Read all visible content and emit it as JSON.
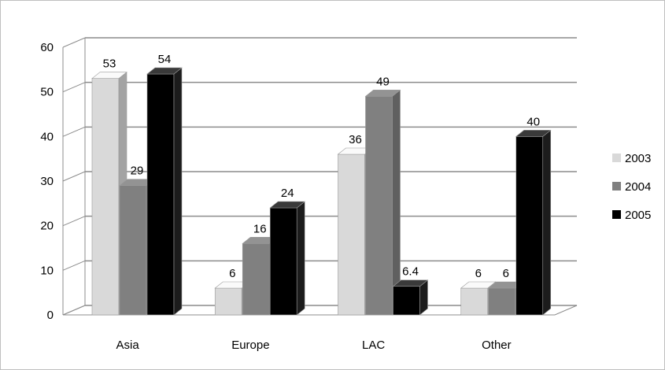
{
  "chart_data": {
    "type": "bar",
    "title": "",
    "xlabel": "",
    "ylabel": "",
    "categories": [
      "Asia",
      "Europe",
      "LAC",
      "Other"
    ],
    "series": [
      {
        "name": "2003",
        "values": [
          53,
          6,
          36,
          6
        ],
        "labels": [
          "53",
          "6",
          "36",
          "6"
        ],
        "color": "#d9d9d9"
      },
      {
        "name": "2004",
        "values": [
          29,
          16,
          49,
          6
        ],
        "labels": [
          "29",
          "16",
          "49",
          "6"
        ],
        "color": "#808080"
      },
      {
        "name": "2005",
        "values": [
          54,
          24,
          6.4,
          40
        ],
        "labels": [
          "54",
          "24",
          "6.4",
          "40"
        ],
        "color": "#000000"
      }
    ],
    "ylim": [
      0,
      60
    ],
    "yticks": [
      "0",
      "10",
      "20",
      "30",
      "40",
      "50",
      "60"
    ],
    "grid": true,
    "legend_position": "right",
    "style": "3d-clustered-column"
  }
}
